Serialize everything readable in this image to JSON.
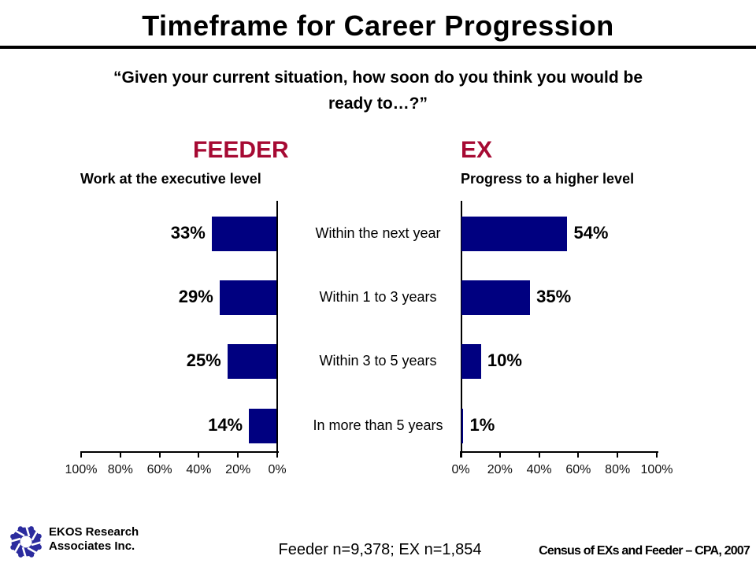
{
  "slide": {
    "title": "Timeframe for Career Progression",
    "question_line1": "“Given your current situation, how soon do you think you would be",
    "question_line2": "ready to…?”"
  },
  "chart_data": {
    "type": "bar",
    "orientation": "horizontal",
    "title": "Timeframe for Career Progression",
    "categories": [
      "Within the next year",
      "Within 1 to 3 years",
      "Within 3 to 5 years",
      "In more than 5 years"
    ],
    "series": [
      {
        "name": "FEEDER",
        "subtitle": "Work at the executive level",
        "values": [
          33,
          29,
          25,
          14
        ],
        "value_labels": [
          "33%",
          "29%",
          "25%",
          "14%"
        ],
        "axis_ticks": [
          "100%",
          "80%",
          "60%",
          "40%",
          "20%",
          "0%"
        ],
        "axis_direction": "right-to-left"
      },
      {
        "name": "EX",
        "subtitle": "Progress to a higher level",
        "values": [
          54,
          35,
          10,
          1
        ],
        "value_labels": [
          "54%",
          "35%",
          "10%",
          "1%"
        ],
        "axis_ticks": [
          "0%",
          "20%",
          "40%",
          "60%",
          "80%",
          "100%"
        ],
        "axis_direction": "left-to-right"
      }
    ],
    "axis_range": [
      0,
      100
    ],
    "grid": false,
    "legend": false,
    "bar_color": "#000080",
    "series_header_color": "#A60A33"
  },
  "footer": {
    "org_line1": "EKOS Research",
    "org_line2": "Associates Inc.",
    "logo_color": "#2B2B9E",
    "sample_note": "Feeder n=9,378; EX n=1,854",
    "source": "Census of EXs and Feeder – CPA, 2007"
  }
}
